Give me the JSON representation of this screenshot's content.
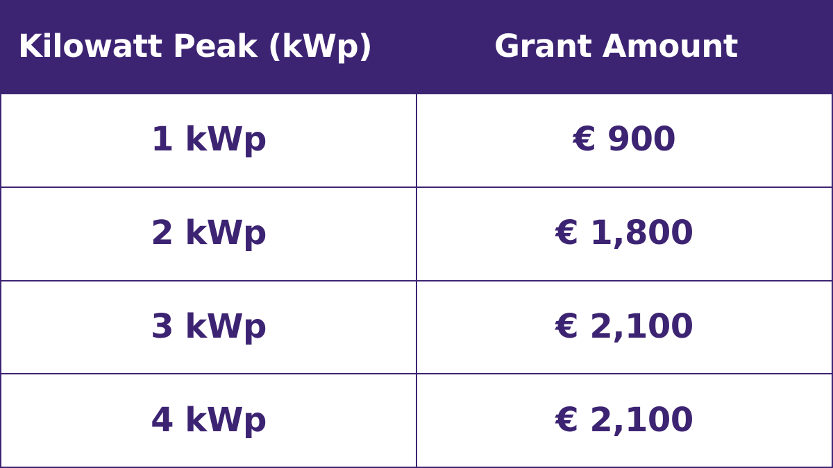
{
  "colors": {
    "brand_purple": "#3d2473",
    "header_text": "#ffffff",
    "background": "#ffffff"
  },
  "table": {
    "headers": [
      "Kilowatt Peak (kWp)",
      "Grant Amount"
    ],
    "rows": [
      [
        "1 kWp",
        "€ 900"
      ],
      [
        "2 kWp",
        "€ 1,800"
      ],
      [
        "3 kWp",
        "€ 2,100"
      ],
      [
        "4 kWp",
        "€ 2,100"
      ]
    ]
  }
}
